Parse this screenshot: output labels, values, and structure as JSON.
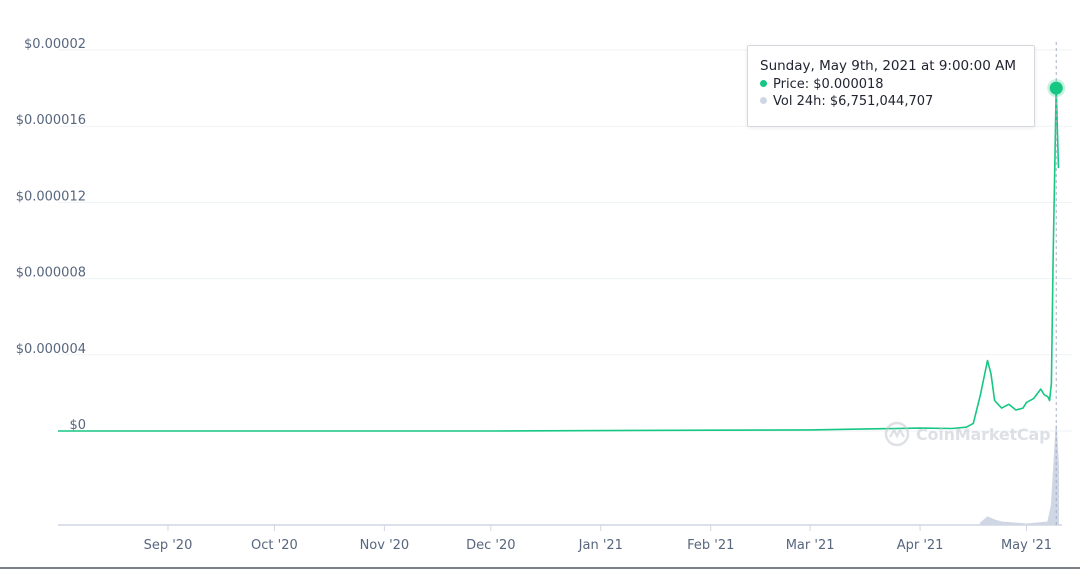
{
  "chart_data": {
    "type": "line",
    "title": "",
    "xlabel": "",
    "ylabel": "",
    "y_tick_labels": [
      "$0",
      "$0.000004",
      "$0.000008",
      "$0.000012",
      "$0.000016",
      "$0.00002"
    ],
    "y_tick_values": [
      0,
      4e-06,
      8e-06,
      1.2e-05,
      1.6e-05,
      2e-05
    ],
    "x_tick_labels": [
      "Sep '20",
      "Oct '20",
      "Nov '20",
      "Dec '20",
      "Jan '21",
      "Feb '21",
      "Mar '21",
      "Apr '21",
      "May '21"
    ],
    "x_tick_dates": [
      "2020-09-01",
      "2020-10-01",
      "2020-11-01",
      "2020-12-01",
      "2021-01-01",
      "2021-02-01",
      "2021-03-01",
      "2021-04-01",
      "2021-05-01"
    ],
    "ylim": [
      0,
      2e-05
    ],
    "xlim": [
      "2020-08-01",
      "2021-05-11"
    ],
    "grid": true,
    "series": [
      {
        "color": "#16c784",
        "x": [
          "2020-08-01",
          "2020-12-01",
          "2021-02-01",
          "2021-03-01",
          "2021-03-15",
          "2021-04-01",
          "2021-04-10",
          "2021-04-14",
          "2021-04-16",
          "2021-04-18",
          "2021-04-20",
          "2021-04-21",
          "2021-04-22",
          "2021-04-23",
          "2021-04-24",
          "2021-04-25",
          "2021-04-26",
          "2021-04-28",
          "2021-04-30",
          "2021-05-01",
          "2021-05-03",
          "2021-05-05",
          "2021-05-06",
          "2021-05-07",
          "2021-05-07T12:00",
          "2021-05-08",
          "2021-05-08T12:00",
          "2021-05-09T09:00",
          "2021-05-10"
        ],
        "values": [
          0,
          0,
          4e-08,
          6e-08,
          1e-07,
          1.5e-07,
          1.3e-07,
          2e-07,
          4e-07,
          1.9e-06,
          3.7e-06,
          3e-06,
          1.6e-06,
          1.4e-06,
          1.2e-06,
          1.3e-06,
          1.4e-06,
          1.1e-06,
          1.2e-06,
          1.5e-06,
          1.7e-06,
          2.2e-06,
          1.9e-06,
          1.8e-06,
          1.6e-06,
          2.5e-06,
          9e-06,
          1.8e-05,
          1.38e-05
        ]
      },
      {
        "color": "#cfd6e4",
        "x": [
          "2021-04-18",
          "2021-04-20",
          "2021-04-22",
          "2021-04-24",
          "2021-05-01",
          "2021-05-07",
          "2021-05-08",
          "2021-05-09T09:00",
          "2021-05-10"
        ],
        "values": [
          0.02,
          0.08,
          0.05,
          0.03,
          0.01,
          0.03,
          0.2,
          1.0,
          0.6
        ]
      }
    ]
  },
  "tooltip": {
    "title": "Sunday, May 9th, 2021 at 9:00:00 AM",
    "price_label": "Price:",
    "price_value": "$0.000018",
    "vol_label": "Vol 24h:",
    "vol_value": "$6,751,044,707",
    "price_color": "#16c784",
    "vol_color": "#cfd6e4"
  },
  "watermark": {
    "text": "CoinMarketCap"
  }
}
